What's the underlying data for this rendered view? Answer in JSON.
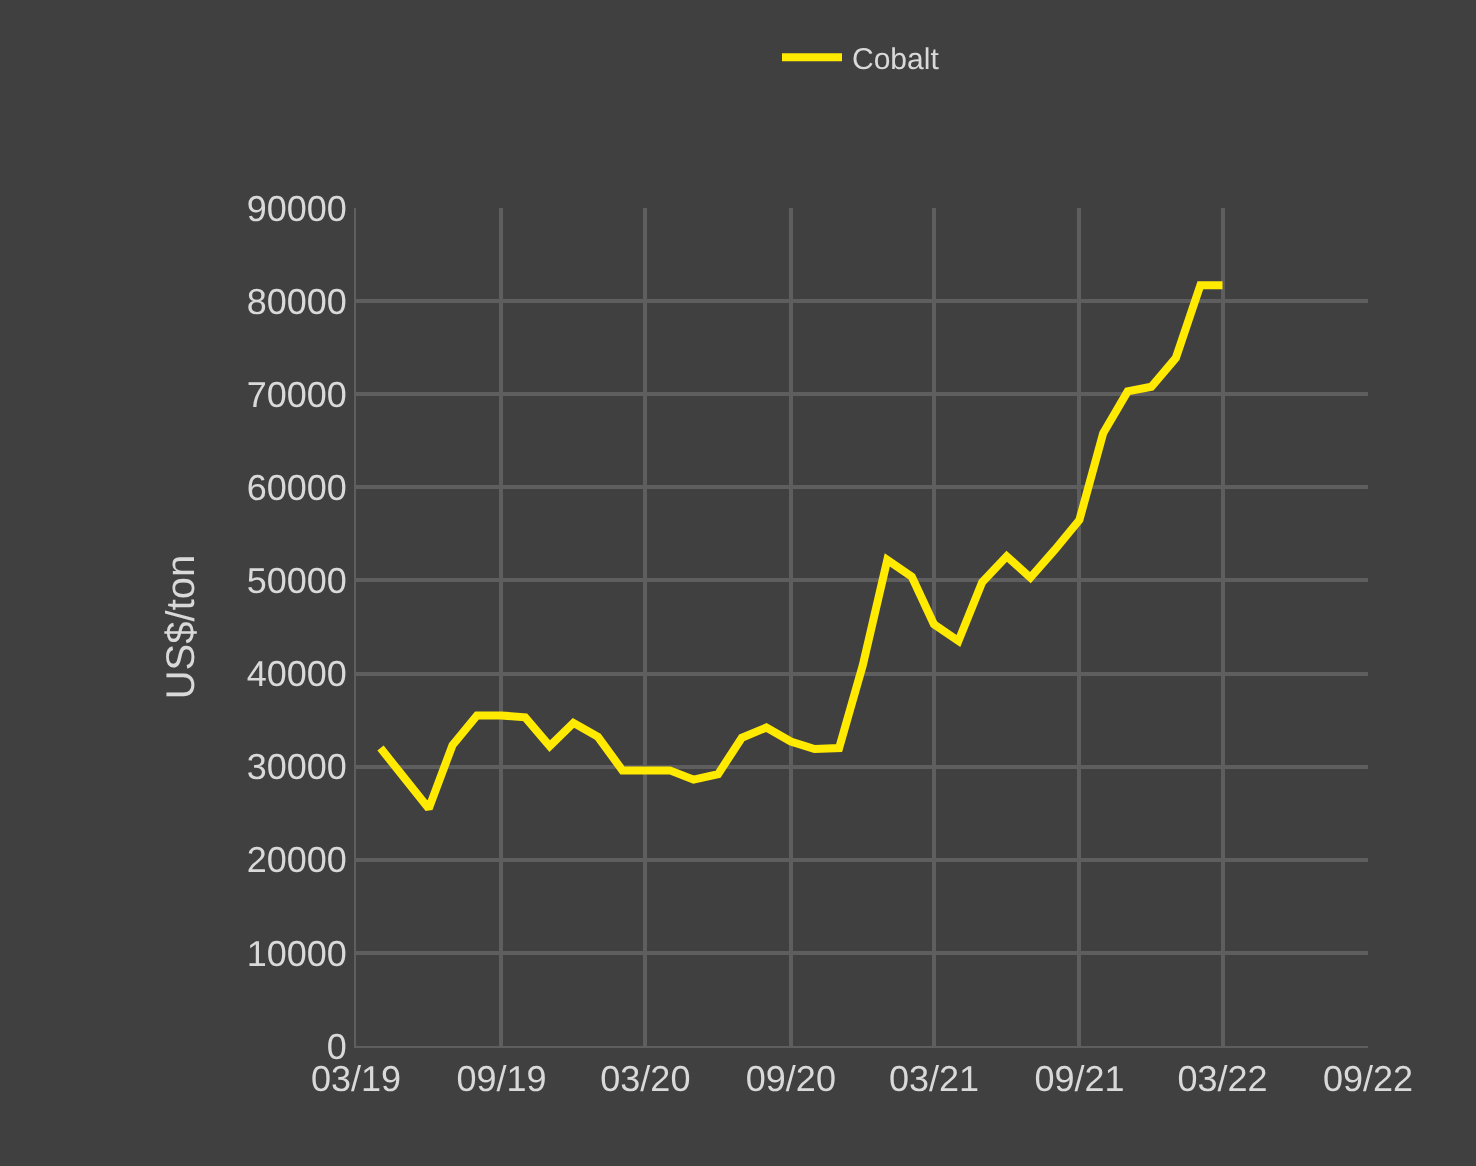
{
  "chart_data": {
    "type": "line",
    "ylabel": "US$/ton",
    "x": [
      "2019-04",
      "2019-06",
      "2019-07",
      "2019-08",
      "2019-09",
      "2019-10",
      "2019-11",
      "2019-12",
      "2020-01",
      "2020-02",
      "2020-03",
      "2020-04",
      "2020-05",
      "2020-06",
      "2020-07",
      "2020-08",
      "2020-09",
      "2020-10",
      "2020-11",
      "2020-12",
      "2021-01",
      "2021-02",
      "2021-03",
      "2021-04",
      "2021-05",
      "2021-06",
      "2021-07",
      "2021-08",
      "2021-09",
      "2021-10",
      "2021-11",
      "2021-12",
      "2022-01",
      "2022-02",
      "2022-03"
    ],
    "series": [
      {
        "name": "Cobalt",
        "color": "#ffea00",
        "values": [
          32000,
          25500,
          32300,
          35500,
          35500,
          35300,
          32200,
          34700,
          33200,
          29600,
          29600,
          29600,
          28600,
          29200,
          33100,
          34200,
          32700,
          31900,
          32000,
          40900,
          52200,
          50400,
          45300,
          43500,
          49800,
          52600,
          50300,
          53300,
          56500,
          65800,
          70300,
          70800,
          73900,
          81700,
          81700
        ]
      }
    ],
    "xlim": [
      "2019-03",
      "2022-09"
    ],
    "xticks": [
      {
        "value": "2019-03",
        "label": "03/19"
      },
      {
        "value": "2019-09",
        "label": "09/19"
      },
      {
        "value": "2020-03",
        "label": "03/20"
      },
      {
        "value": "2020-09",
        "label": "09/20"
      },
      {
        "value": "2021-03",
        "label": "03/21"
      },
      {
        "value": "2021-09",
        "label": "09/21"
      },
      {
        "value": "2022-03",
        "label": "03/22"
      },
      {
        "value": "2022-09",
        "label": "09/22"
      }
    ],
    "ylim": [
      0,
      90000
    ],
    "yticks": [
      0,
      10000,
      20000,
      30000,
      40000,
      50000,
      60000,
      70000,
      80000,
      90000
    ],
    "grid": true,
    "legend": "top",
    "marker": "none",
    "line_style": "solid"
  }
}
